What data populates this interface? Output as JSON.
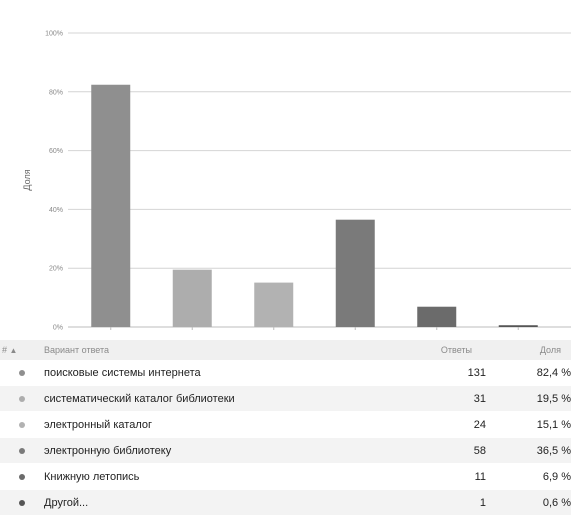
{
  "chart_data": {
    "type": "bar",
    "ylabel": "Доля",
    "ylim": [
      0,
      100
    ],
    "yticks": [
      0,
      20,
      40,
      60,
      80,
      100
    ],
    "ytick_labels": [
      "0%",
      "20%",
      "40%",
      "60%",
      "80%",
      "100%"
    ],
    "grid": true,
    "values": [
      82.4,
      19.5,
      15.1,
      36.5,
      6.9,
      0.6
    ],
    "colors": [
      "#8f8f8f",
      "#adadad",
      "#b2b2b2",
      "#7a7a7a",
      "#6b6b6b",
      "#555555"
    ]
  },
  "table": {
    "headers": {
      "index": "#",
      "sort_icon": "sort-ascending-icon",
      "answer": "Вариант ответа",
      "count": "Ответы",
      "share": "Доля"
    },
    "rows": [
      {
        "answer": "поисковые системы интернета",
        "count": "131",
        "share": "82,4 %",
        "color": "#8f8f8f"
      },
      {
        "answer": "систематический каталог библиотеки",
        "count": "31",
        "share": "19,5 %",
        "color": "#adadad"
      },
      {
        "answer": "электронный каталог",
        "count": "24",
        "share": "15,1 %",
        "color": "#b2b2b2"
      },
      {
        "answer": "электронную библиотеку",
        "count": "58",
        "share": "36,5 %",
        "color": "#7a7a7a"
      },
      {
        "answer": "Книжную летопись",
        "count": "11",
        "share": "6,9 %",
        "color": "#6b6b6b"
      },
      {
        "answer": "Другой...",
        "count": "1",
        "share": "0,6 %",
        "color": "#555555"
      }
    ]
  }
}
